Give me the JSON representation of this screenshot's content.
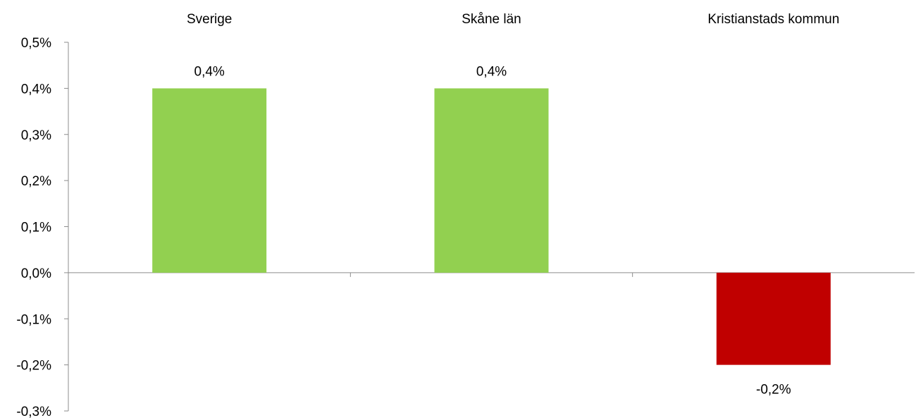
{
  "chart_data": {
    "type": "bar",
    "categories": [
      "Sverige",
      "Skåne län",
      "Kristianstads kommun"
    ],
    "values": [
      0.4,
      0.4,
      -0.2
    ],
    "data_labels": [
      "0,4%",
      "0,4%",
      "-0,2%"
    ],
    "bar_colors": [
      "#92d050",
      "#92d050",
      "#c00000"
    ],
    "ylim": [
      -0.3,
      0.5
    ],
    "yticks": [
      0.5,
      0.4,
      0.3,
      0.2,
      0.1,
      0.0,
      -0.1,
      -0.2,
      -0.3
    ],
    "ytick_labels": [
      "0,5%",
      "0,4%",
      "0,3%",
      "0,2%",
      "0,1%",
      "0,0%",
      "-0,1%",
      "-0,2%",
      "-0,3%"
    ],
    "category_labels_position": "top",
    "grid": false,
    "legend": false
  }
}
